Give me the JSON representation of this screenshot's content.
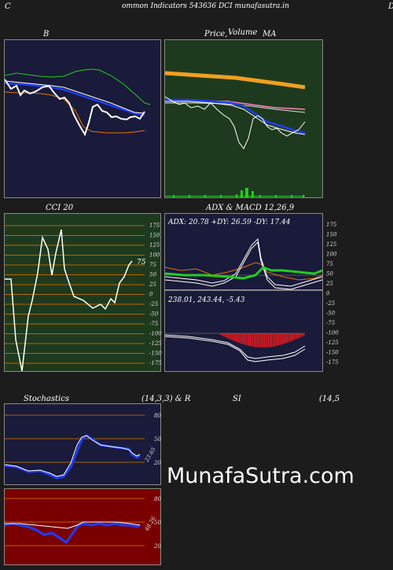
{
  "header": {
    "left_letter": "C",
    "title": "ommon  Indicators 543636  DCI munafasutra.in",
    "right_letter": "D"
  },
  "bollinger": {
    "title": "B"
  },
  "price": {
    "title_price": "Price,",
    "title_overlap": "Volume",
    "title_ma": "MA"
  },
  "cci": {
    "title": "CCI 20",
    "current_value": "75",
    "ticks": [
      "175",
      "150",
      "125",
      "100",
      "75",
      "50",
      "25",
      "0",
      "-25",
      "-50",
      "-75",
      "-100",
      "-125",
      "-150",
      "-175"
    ]
  },
  "adx": {
    "title": "ADX  & MACD 12,26,9",
    "readout": "ADX: 20.78  +DY: 26.59 -DY: 17.44",
    "macd_readout": "238.01,  243.44,  -5.43"
  },
  "stochastics": {
    "title_left": "Stochastics",
    "title_params": "(14,3,3) & R",
    "value_label": "23.65",
    "ticks": [
      "80",
      "50",
      "20"
    ]
  },
  "rsi": {
    "title": "SI",
    "title_params": "(14,5",
    "value_label": "48.26",
    "ticks": [
      "80",
      "50",
      "20"
    ]
  },
  "watermark": "MunafaSutra.com",
  "colors": {
    "navy": "#1a1a3a",
    "green_panel": "#1e3a1e",
    "dark_red": "#7a0000",
    "orange": "#e07800",
    "blue": "#1e3cff",
    "green_line": "#22cc22",
    "macd_red": "#ff1a1a"
  }
}
